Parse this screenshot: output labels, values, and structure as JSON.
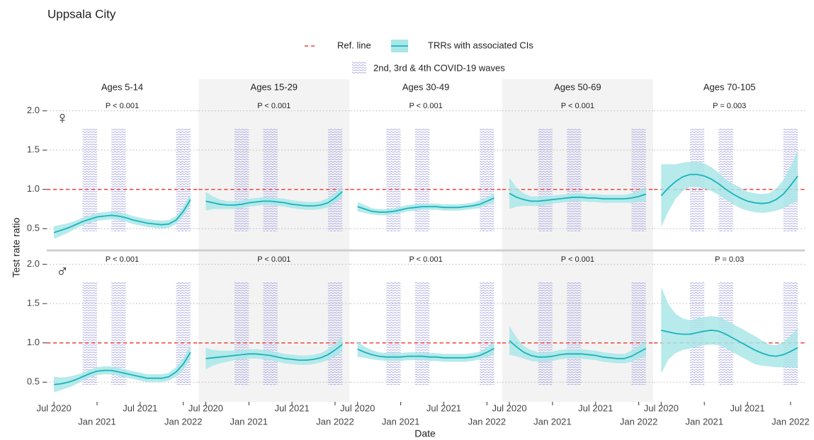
{
  "chart_data": {
    "type": "line",
    "title": "Uppsala City",
    "x_label": "Date",
    "y_label": "Test rate ratio",
    "x": [
      "2020-07",
      "2020-08",
      "2020-09",
      "2020-10",
      "2020-11",
      "2020-12",
      "2021-01",
      "2021-02",
      "2021-03",
      "2021-04",
      "2021-05",
      "2021-06",
      "2021-07",
      "2021-08",
      "2021-09",
      "2021-10",
      "2021-11",
      "2021-12",
      "2022-01",
      "2022-02"
    ],
    "xlim": [
      "2020-06",
      "2022-03"
    ],
    "xticks": [
      {
        "value": "2020-07",
        "label": "Jul 2020"
      },
      {
        "value": "2021-01",
        "label": "Jan 2021"
      },
      {
        "value": "2021-07",
        "label": "Jul 2021"
      },
      {
        "value": "2022-01",
        "label": "Jan 2022"
      }
    ],
    "ylim": [
      0.25,
      2.15
    ],
    "yticks": [
      0.5,
      {
        "value": 1,
        "label": "1.0"
      },
      1.5,
      {
        "value": 2,
        "label": "2.0"
      }
    ],
    "grid": true,
    "ref_line": {
      "name": "Ref. line",
      "color": "#f0433a",
      "value": 1
    },
    "trr": {
      "name": "TRRs with associated CIs",
      "color": "#18b3bb",
      "band_color": "#a9e6e8"
    },
    "waves": {
      "name": "2nd, 3rd & 4th COVID-19 waves",
      "color": "#a7a7e2",
      "ranges": [
        [
          "2020-11",
          "2021-01"
        ],
        [
          "2021-03",
          "2021-05"
        ],
        [
          "2021-12",
          "2022-02"
        ]
      ]
    },
    "columns": [
      "Ages 5-14",
      "Ages 15-29",
      "Ages 30-49",
      "Ages 50-69",
      "Ages 70-105"
    ],
    "rows": [
      {
        "label": "♀",
        "panels": [
          {
            "annotation": "P < 0.001",
            "values": [
              0.45,
              0.48,
              0.51,
              0.55,
              0.59,
              0.62,
              0.65,
              0.66,
              0.67,
              0.66,
              0.64,
              0.61,
              0.59,
              0.57,
              0.56,
              0.55,
              0.56,
              0.61,
              0.72,
              0.87
            ],
            "errors": [
              0.08,
              0.07,
              0.06,
              0.05,
              0.05,
              0.05,
              0.05,
              0.05,
              0.05,
              0.05,
              0.05,
              0.05,
              0.05,
              0.05,
              0.05,
              0.05,
              0.05,
              0.05,
              0.06,
              0.07
            ]
          },
          {
            "annotation": "P < 0.001",
            "values": [
              0.85,
              0.83,
              0.81,
              0.8,
              0.8,
              0.81,
              0.83,
              0.84,
              0.85,
              0.85,
              0.84,
              0.83,
              0.81,
              0.8,
              0.79,
              0.79,
              0.8,
              0.83,
              0.89,
              0.97
            ],
            "errors": [
              0.12,
              0.08,
              0.06,
              0.05,
              0.05,
              0.05,
              0.05,
              0.05,
              0.05,
              0.05,
              0.05,
              0.05,
              0.05,
              0.05,
              0.05,
              0.05,
              0.05,
              0.06,
              0.06,
              0.07
            ]
          },
          {
            "annotation": "P < 0.001",
            "values": [
              0.78,
              0.75,
              0.72,
              0.71,
              0.71,
              0.72,
              0.74,
              0.76,
              0.77,
              0.78,
              0.78,
              0.78,
              0.77,
              0.77,
              0.77,
              0.78,
              0.79,
              0.81,
              0.85,
              0.89
            ],
            "errors": [
              0.06,
              0.05,
              0.04,
              0.04,
              0.04,
              0.04,
              0.04,
              0.04,
              0.04,
              0.04,
              0.04,
              0.04,
              0.04,
              0.04,
              0.04,
              0.04,
              0.04,
              0.05,
              0.05,
              0.06
            ]
          },
          {
            "annotation": "P < 0.001",
            "values": [
              0.95,
              0.9,
              0.87,
              0.85,
              0.85,
              0.86,
              0.87,
              0.88,
              0.89,
              0.9,
              0.9,
              0.89,
              0.89,
              0.88,
              0.88,
              0.88,
              0.88,
              0.89,
              0.91,
              0.94
            ],
            "errors": [
              0.2,
              0.12,
              0.08,
              0.06,
              0.06,
              0.06,
              0.05,
              0.05,
              0.05,
              0.05,
              0.05,
              0.05,
              0.05,
              0.05,
              0.05,
              0.05,
              0.05,
              0.06,
              0.07,
              0.09
            ]
          },
          {
            "annotation": "P = 0.003",
            "values": [
              0.92,
              1.02,
              1.1,
              1.16,
              1.19,
              1.19,
              1.17,
              1.13,
              1.07,
              1.0,
              0.94,
              0.89,
              0.85,
              0.83,
              0.82,
              0.83,
              0.87,
              0.94,
              1.05,
              1.17
            ],
            "errors": [
              0.4,
              0.3,
              0.22,
              0.18,
              0.16,
              0.16,
              0.16,
              0.15,
              0.14,
              0.13,
              0.13,
              0.13,
              0.12,
              0.12,
              0.12,
              0.12,
              0.14,
              0.18,
              0.24,
              0.32
            ]
          }
        ]
      },
      {
        "label": "♂",
        "panels": [
          {
            "annotation": "P < 0.001",
            "values": [
              0.47,
              0.48,
              0.5,
              0.53,
              0.57,
              0.61,
              0.64,
              0.65,
              0.65,
              0.63,
              0.61,
              0.59,
              0.57,
              0.55,
              0.55,
              0.55,
              0.57,
              0.63,
              0.73,
              0.88
            ],
            "errors": [
              0.1,
              0.08,
              0.07,
              0.06,
              0.05,
              0.05,
              0.05,
              0.05,
              0.05,
              0.05,
              0.05,
              0.05,
              0.05,
              0.05,
              0.05,
              0.05,
              0.05,
              0.06,
              0.07,
              0.09
            ]
          },
          {
            "annotation": "P < 0.001",
            "values": [
              0.8,
              0.81,
              0.82,
              0.83,
              0.84,
              0.85,
              0.86,
              0.86,
              0.85,
              0.84,
              0.82,
              0.8,
              0.79,
              0.78,
              0.78,
              0.79,
              0.81,
              0.85,
              0.91,
              0.98
            ],
            "errors": [
              0.14,
              0.1,
              0.08,
              0.07,
              0.06,
              0.06,
              0.06,
              0.06,
              0.06,
              0.06,
              0.06,
              0.06,
              0.06,
              0.06,
              0.06,
              0.06,
              0.06,
              0.07,
              0.08,
              0.1
            ]
          },
          {
            "annotation": "P < 0.001",
            "values": [
              0.92,
              0.88,
              0.85,
              0.83,
              0.82,
              0.82,
              0.82,
              0.83,
              0.83,
              0.83,
              0.82,
              0.82,
              0.81,
              0.81,
              0.81,
              0.81,
              0.82,
              0.84,
              0.88,
              0.93
            ],
            "errors": [
              0.1,
              0.07,
              0.06,
              0.05,
              0.05,
              0.05,
              0.05,
              0.05,
              0.05,
              0.05,
              0.05,
              0.05,
              0.05,
              0.05,
              0.05,
              0.05,
              0.05,
              0.05,
              0.06,
              0.08
            ]
          },
          {
            "annotation": "P < 0.001",
            "values": [
              1.03,
              0.95,
              0.88,
              0.84,
              0.82,
              0.82,
              0.83,
              0.85,
              0.86,
              0.86,
              0.86,
              0.85,
              0.84,
              0.82,
              0.81,
              0.8,
              0.8,
              0.83,
              0.88,
              0.93
            ],
            "errors": [
              0.18,
              0.12,
              0.08,
              0.07,
              0.06,
              0.06,
              0.06,
              0.06,
              0.06,
              0.06,
              0.06,
              0.06,
              0.06,
              0.06,
              0.06,
              0.06,
              0.06,
              0.07,
              0.08,
              0.1
            ]
          },
          {
            "annotation": "P = 0.03",
            "values": [
              1.16,
              1.14,
              1.12,
              1.11,
              1.11,
              1.13,
              1.15,
              1.16,
              1.15,
              1.11,
              1.06,
              1.01,
              0.96,
              0.91,
              0.87,
              0.84,
              0.83,
              0.85,
              0.89,
              0.94
            ],
            "errors": [
              0.55,
              0.35,
              0.25,
              0.2,
              0.18,
              0.18,
              0.18,
              0.18,
              0.18,
              0.18,
              0.18,
              0.18,
              0.18,
              0.18,
              0.16,
              0.14,
              0.14,
              0.16,
              0.2,
              0.25
            ]
          }
        ]
      }
    ]
  }
}
